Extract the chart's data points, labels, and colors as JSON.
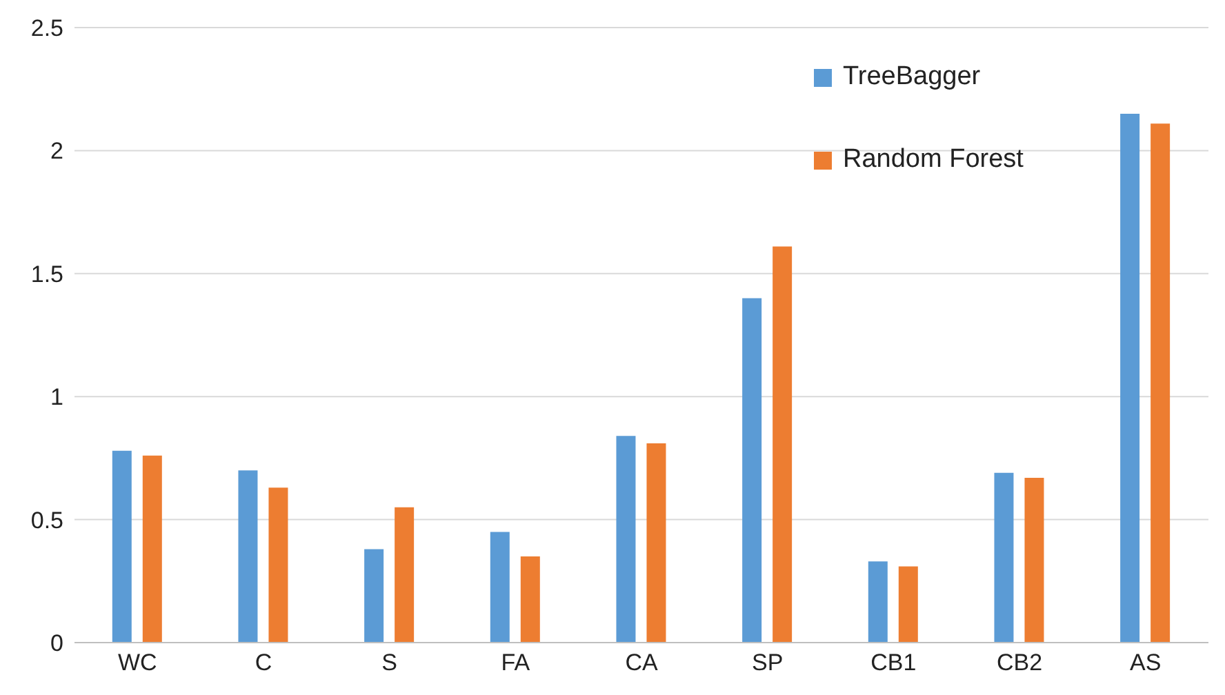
{
  "chart_data": {
    "type": "bar",
    "categories": [
      "WC",
      "C",
      "S",
      "FA",
      "CA",
      "SP",
      "CB1",
      "CB2",
      "AS"
    ],
    "series": [
      {
        "name": "TreeBagger",
        "color": "#5b9bd5",
        "values": [
          0.78,
          0.7,
          0.38,
          0.45,
          0.84,
          1.4,
          0.33,
          0.69,
          2.15
        ]
      },
      {
        "name": "Random Forest",
        "color": "#ed7d31",
        "values": [
          0.76,
          0.63,
          0.55,
          0.35,
          0.81,
          1.61,
          0.31,
          0.67,
          2.11
        ]
      }
    ],
    "ylim": [
      0,
      2.5
    ],
    "yticks": [
      0,
      0.5,
      1,
      1.5,
      2,
      2.5
    ],
    "grid": "y",
    "legend": "top right"
  }
}
